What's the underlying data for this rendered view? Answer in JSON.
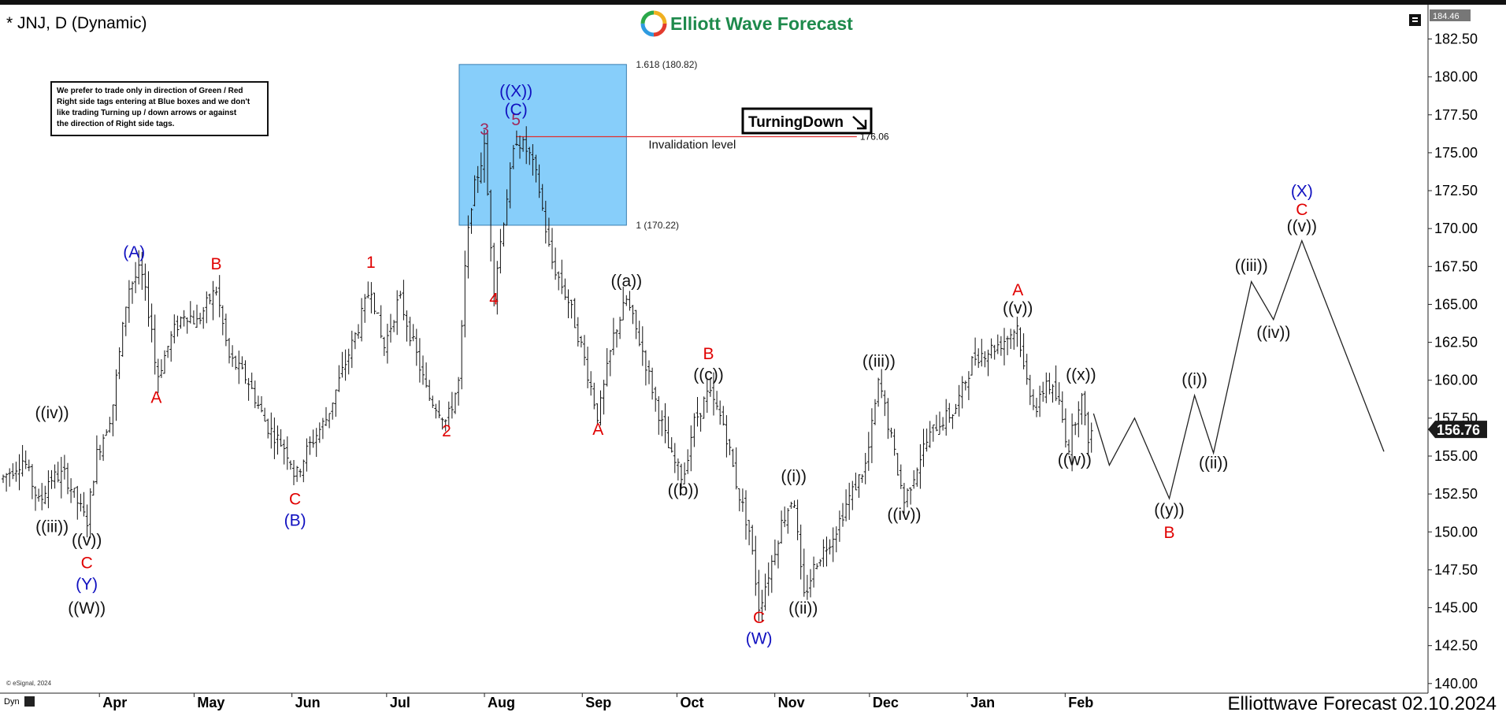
{
  "window": {
    "title": "* JNJ, D (Dynamic)"
  },
  "brand": {
    "name": "Elliott Wave Forecast",
    "accent": "#1e8a4c"
  },
  "footer": {
    "text": "Elliottwave Forecast 02.10.2024",
    "copyright": "© eSignal, 2024",
    "dyn_label": "Dyn"
  },
  "note": {
    "lines": [
      "We prefer to trade only in direction of Green / Red",
      "Right side tags entering at Blue boxes and we don't",
      "like trading Turning up / down arrows or against",
      "the direction of Right side tags."
    ]
  },
  "badge": {
    "label": "TurningDown",
    "icon": "arrow-down-right-icon"
  },
  "invalidation": {
    "label": "Invalidation level",
    "value": "176.06"
  },
  "blue_box": {
    "top_label": "1.618 (180.82)",
    "bottom_label": "1 (170.22)",
    "color": "#87cefa"
  },
  "colors": {
    "red": "#e00000",
    "blue": "#1010c0",
    "purple": "#a0285a",
    "black": "#111111",
    "current_price_bg": "#1a1a1a"
  },
  "chart_data": {
    "type": "ohlc",
    "ylim": [
      140,
      184
    ],
    "y_ticks": [
      "182.50",
      "180.00",
      "177.50",
      "175.00",
      "172.50",
      "170.00",
      "167.50",
      "165.00",
      "162.50",
      "160.00",
      "157.50",
      "155.00",
      "152.50",
      "150.00",
      "147.50",
      "145.00",
      "142.50",
      "140.00"
    ],
    "y_top_label": "184.46",
    "current_price": "156.76",
    "months": [
      "Apr",
      "May",
      "Jun",
      "Jul",
      "Aug",
      "Sep",
      "Oct",
      "Nov",
      "Dec",
      "Jan",
      "Feb"
    ],
    "price_series": [
      [
        "2023-03-01",
        153.5
      ],
      [
        "2023-03-08",
        154.8
      ],
      [
        "2023-03-13",
        151.8
      ],
      [
        "2023-03-16",
        153.5
      ],
      [
        "2023-03-21",
        153.8
      ],
      [
        "2023-03-28",
        150.6
      ],
      [
        "2023-03-31",
        155.0
      ],
      [
        "2023-04-05",
        158.0
      ],
      [
        "2023-04-10",
        166.0
      ],
      [
        "2023-04-14",
        167.3
      ],
      [
        "2023-04-18",
        163.0
      ],
      [
        "2023-04-19",
        160.0
      ],
      [
        "2023-04-24",
        163.0
      ],
      [
        "2023-04-28",
        164.5
      ],
      [
        "2023-05-02",
        163.8
      ],
      [
        "2023-05-05",
        165.0
      ],
      [
        "2023-05-08",
        166.0
      ],
      [
        "2023-05-12",
        161.5
      ],
      [
        "2023-05-18",
        160.0
      ],
      [
        "2023-05-24",
        157.0
      ],
      [
        "2023-05-30",
        155.5
      ],
      [
        "2023-06-01",
        154.5
      ],
      [
        "2023-06-02",
        153.5
      ],
      [
        "2023-06-06",
        155.5
      ],
      [
        "2023-06-12",
        157.5
      ],
      [
        "2023-06-16",
        160.0
      ],
      [
        "2023-06-22",
        163.5
      ],
      [
        "2023-06-26",
        166.3
      ],
      [
        "2023-06-30",
        162.0
      ],
      [
        "2023-07-05",
        165.5
      ],
      [
        "2023-07-10",
        162.0
      ],
      [
        "2023-07-14",
        159.0
      ],
      [
        "2023-07-18",
        158.0
      ],
      [
        "2023-07-20",
        157.2
      ],
      [
        "2023-07-24",
        160.0
      ],
      [
        "2023-07-26",
        168.0
      ],
      [
        "2023-07-28",
        172.0
      ],
      [
        "2023-08-01",
        175.3
      ],
      [
        "2023-08-04",
        166.0
      ],
      [
        "2023-08-08",
        172.0
      ],
      [
        "2023-08-11",
        176.0
      ],
      [
        "2023-08-15",
        175.0
      ],
      [
        "2023-08-18",
        173.0
      ],
      [
        "2023-08-22",
        168.0
      ],
      [
        "2023-08-28",
        165.0
      ],
      [
        "2023-09-01",
        162.0
      ],
      [
        "2023-09-06",
        157.5
      ],
      [
        "2023-09-11",
        163.0
      ],
      [
        "2023-09-15",
        165.3
      ],
      [
        "2023-09-20",
        162.0
      ],
      [
        "2023-09-25",
        158.0
      ],
      [
        "2023-09-29",
        155.0
      ],
      [
        "2023-10-03",
        153.5
      ],
      [
        "2023-10-06",
        157.0
      ],
      [
        "2023-10-11",
        159.2
      ],
      [
        "2023-10-16",
        157.0
      ],
      [
        "2023-10-20",
        153.0
      ],
      [
        "2023-10-24",
        150.0
      ],
      [
        "2023-10-27",
        145.0
      ],
      [
        "2023-10-31",
        148.0
      ],
      [
        "2023-11-03",
        150.5
      ],
      [
        "2023-11-07",
        152.5
      ],
      [
        "2023-11-10",
        145.5
      ],
      [
        "2023-11-14",
        148.0
      ],
      [
        "2023-11-20",
        150.0
      ],
      [
        "2023-11-24",
        152.0
      ],
      [
        "2023-11-30",
        154.5
      ],
      [
        "2023-12-04",
        160.0
      ],
      [
        "2023-12-07",
        157.0
      ],
      [
        "2023-12-12",
        152.0
      ],
      [
        "2023-12-18",
        155.5
      ],
      [
        "2023-12-22",
        157.0
      ],
      [
        "2023-12-28",
        158.0
      ],
      [
        "2024-01-03",
        161.5
      ],
      [
        "2024-01-08",
        162.0
      ],
      [
        "2024-01-12",
        162.5
      ],
      [
        "2024-01-17",
        163.6
      ],
      [
        "2024-01-19",
        160.5
      ],
      [
        "2024-01-23",
        158.0
      ],
      [
        "2024-01-26",
        160.0
      ],
      [
        "2024-01-30",
        158.5
      ],
      [
        "2024-02-02",
        155.5
      ],
      [
        "2024-02-06",
        159.2
      ],
      [
        "2024-02-08",
        156.2
      ],
      [
        "2024-02-10",
        156.76
      ]
    ],
    "forecast_path": [
      [
        "2024-02-10",
        157.8
      ],
      [
        "2024-02-15",
        154.4
      ],
      [
        "2024-02-23",
        157.5
      ],
      [
        "2024-03-05",
        152.2
      ],
      [
        "2024-03-13",
        159.0
      ],
      [
        "2024-03-19",
        155.2
      ],
      [
        "2024-03-31",
        166.5
      ],
      [
        "2024-04-07",
        164.0
      ],
      [
        "2024-04-16",
        169.2
      ],
      [
        "2024-05-12",
        155.3
      ]
    ],
    "labels": [
      {
        "text": "((iii))",
        "d": "2023-03-17",
        "p": 150.0,
        "c": "black"
      },
      {
        "text": "((iv))",
        "d": "2023-03-17",
        "p": 157.5,
        "c": "black"
      },
      {
        "text": "((v))",
        "d": "2023-03-28",
        "p": 149.1,
        "c": "black"
      },
      {
        "text": "C",
        "d": "2023-03-28",
        "p": 147.6,
        "c": "red"
      },
      {
        "text": "(Y)",
        "d": "2023-03-28",
        "p": 146.2,
        "c": "blue"
      },
      {
        "text": "((W))",
        "d": "2023-03-28",
        "p": 144.6,
        "c": "black"
      },
      {
        "text": "(A)",
        "d": "2023-04-12",
        "p": 168.1,
        "c": "blue"
      },
      {
        "text": "A",
        "d": "2023-04-19",
        "p": 158.5,
        "c": "red"
      },
      {
        "text": "B",
        "d": "2023-05-08",
        "p": 167.3,
        "c": "red"
      },
      {
        "text": "C",
        "d": "2023-06-02",
        "p": 151.8,
        "c": "red"
      },
      {
        "text": "(B)",
        "d": "2023-06-02",
        "p": 150.4,
        "c": "blue"
      },
      {
        "text": "1",
        "d": "2023-06-26",
        "p": 167.4,
        "c": "red"
      },
      {
        "text": "2",
        "d": "2023-07-20",
        "p": 156.3,
        "c": "red"
      },
      {
        "text": "3",
        "d": "2023-08-01",
        "p": 176.2,
        "c": "purple"
      },
      {
        "text": "4",
        "d": "2023-08-04",
        "p": 165.0,
        "c": "red"
      },
      {
        "text": "5",
        "d": "2023-08-11",
        "p": 176.8,
        "c": "purple"
      },
      {
        "text": "(C)",
        "d": "2023-08-11",
        "p": 177.5,
        "c": "blue"
      },
      {
        "text": "((X))",
        "d": "2023-08-11",
        "p": 178.7,
        "c": "blue"
      },
      {
        "text": "A",
        "d": "2023-09-06",
        "p": 156.4,
        "c": "red"
      },
      {
        "text": "((a))",
        "d": "2023-09-15",
        "p": 166.2,
        "c": "black"
      },
      {
        "text": "((b))",
        "d": "2023-10-03",
        "p": 152.4,
        "c": "black"
      },
      {
        "text": "B",
        "d": "2023-10-11",
        "p": 161.4,
        "c": "red"
      },
      {
        "text": "((c))",
        "d": "2023-10-11",
        "p": 160.0,
        "c": "black"
      },
      {
        "text": "C",
        "d": "2023-10-27",
        "p": 144.0,
        "c": "red"
      },
      {
        "text": "(W)",
        "d": "2023-10-27",
        "p": 142.6,
        "c": "blue"
      },
      {
        "text": "((i))",
        "d": "2023-11-07",
        "p": 153.3,
        "c": "black"
      },
      {
        "text": "((ii))",
        "d": "2023-11-10",
        "p": 144.6,
        "c": "black"
      },
      {
        "text": "((iii))",
        "d": "2023-12-04",
        "p": 160.9,
        "c": "black"
      },
      {
        "text": "((iv))",
        "d": "2023-12-12",
        "p": 150.8,
        "c": "black"
      },
      {
        "text": "A",
        "d": "2024-01-17",
        "p": 165.6,
        "c": "red"
      },
      {
        "text": "((v))",
        "d": "2024-01-17",
        "p": 164.4,
        "c": "black"
      },
      {
        "text": "((x))",
        "d": "2024-02-06",
        "p": 160.0,
        "c": "black"
      },
      {
        "text": "((w))",
        "d": "2024-02-04",
        "p": 154.4,
        "c": "black"
      },
      {
        "text": "((i))",
        "d": "2024-03-13",
        "p": 159.7,
        "c": "black"
      },
      {
        "text": "((ii))",
        "d": "2024-03-19",
        "p": 154.2,
        "c": "black"
      },
      {
        "text": "((y))",
        "d": "2024-03-05",
        "p": 151.1,
        "c": "black"
      },
      {
        "text": "B",
        "d": "2024-03-05",
        "p": 149.6,
        "c": "red"
      },
      {
        "text": "((iii))",
        "d": "2024-03-31",
        "p": 167.2,
        "c": "black"
      },
      {
        "text": "((iv))",
        "d": "2024-04-07",
        "p": 162.8,
        "c": "black"
      },
      {
        "text": "((v))",
        "d": "2024-04-16",
        "p": 169.8,
        "c": "black"
      },
      {
        "text": "C",
        "d": "2024-04-16",
        "p": 170.9,
        "c": "red"
      },
      {
        "text": "(X)",
        "d": "2024-04-16",
        "p": 172.1,
        "c": "blue"
      }
    ]
  }
}
